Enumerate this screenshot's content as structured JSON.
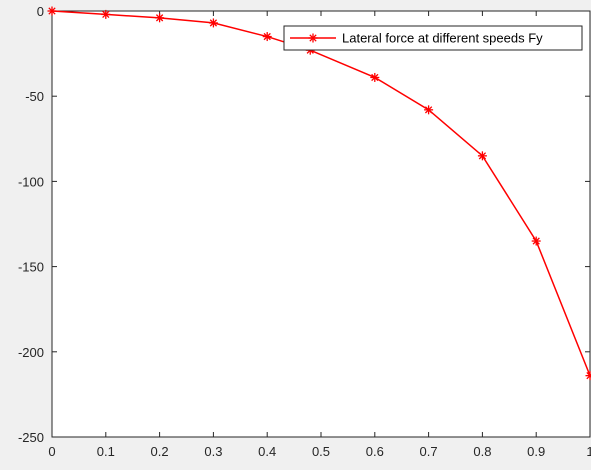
{
  "chart_data": {
    "type": "line",
    "title": "",
    "xlabel": "",
    "ylabel": "",
    "xlim": [
      0,
      1
    ],
    "ylim": [
      -250,
      0
    ],
    "x_ticks": [
      "0",
      "0.1",
      "0.2",
      "0.3",
      "0.4",
      "0.5",
      "0.6",
      "0.7",
      "0.8",
      "0.9",
      "1"
    ],
    "y_ticks": [
      "0",
      "-50",
      "-100",
      "-150",
      "-200",
      "-250"
    ],
    "x_tick_values": [
      0,
      0.1,
      0.2,
      0.3,
      0.4,
      0.5,
      0.6,
      0.7,
      0.8,
      0.9,
      1
    ],
    "y_tick_values": [
      0,
      -50,
      -100,
      -150,
      -200,
      -250
    ],
    "grid": false,
    "legend": {
      "placement": "top-right",
      "entries": [
        "Lateral force at different speeds Fy"
      ]
    },
    "series": [
      {
        "name": "Lateral force at different speeds Fy",
        "color": "#ff0000",
        "marker": "asterisk",
        "x": [
          0,
          0.1,
          0.2,
          0.3,
          0.4,
          0.48,
          0.6,
          0.7,
          0.8,
          0.9,
          1.0
        ],
        "y": [
          0,
          -2,
          -4,
          -7,
          -15,
          -23,
          -39,
          -58,
          -85,
          -135,
          -214
        ]
      }
    ]
  }
}
